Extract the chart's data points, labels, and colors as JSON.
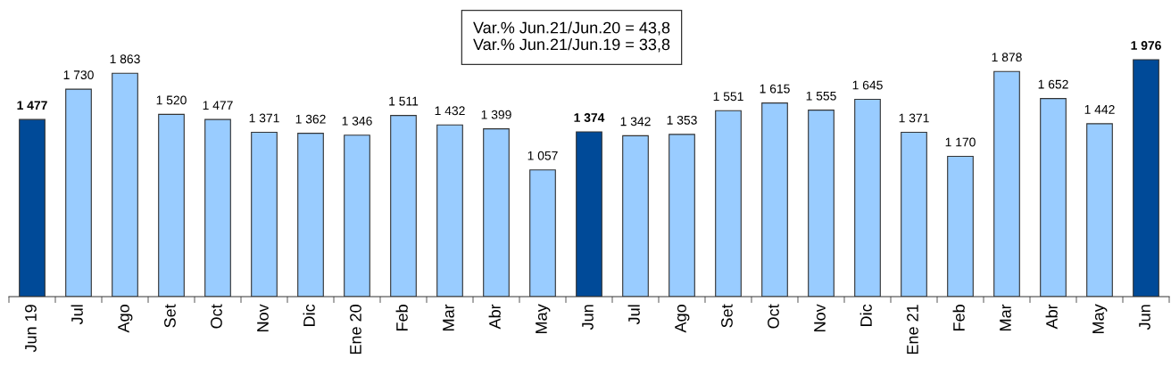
{
  "chart_data": {
    "type": "bar",
    "categories": [
      "Jun 19",
      "Jul",
      "Ago",
      "Set",
      "Oct",
      "Nov",
      "Dic",
      "Ene 20",
      "Feb",
      "Mar",
      "Abr",
      "May",
      "Jun",
      "Jul",
      "Ago",
      "Set",
      "Oct",
      "Nov",
      "Dic",
      "Ene 21",
      "Feb",
      "Mar",
      "Abr",
      "May",
      "Jun"
    ],
    "values": [
      1477,
      1730,
      1863,
      1520,
      1477,
      1371,
      1362,
      1346,
      1511,
      1432,
      1399,
      1057,
      1374,
      1342,
      1353,
      1551,
      1615,
      1555,
      1645,
      1371,
      1170,
      1878,
      1652,
      1442,
      1976
    ],
    "value_labels": [
      "1 477",
      "1 730",
      "1 863",
      "1 520",
      "1 477",
      "1 371",
      "1 362",
      "1 346",
      "1 511",
      "1 432",
      "1 399",
      "1 057",
      "1 374",
      "1 342",
      "1 353",
      "1 551",
      "1 615",
      "1 555",
      "1 645",
      "1 371",
      "1 170",
      "1 878",
      "1 652",
      "1 442",
      "1 976"
    ],
    "colors": [
      "#004a98",
      "#99ccff",
      "#99ccff",
      "#99ccff",
      "#99ccff",
      "#99ccff",
      "#99ccff",
      "#99ccff",
      "#99ccff",
      "#99ccff",
      "#99ccff",
      "#99ccff",
      "#004a98",
      "#99ccff",
      "#99ccff",
      "#99ccff",
      "#99ccff",
      "#99ccff",
      "#99ccff",
      "#99ccff",
      "#99ccff",
      "#99ccff",
      "#99ccff",
      "#99ccff",
      "#004a98"
    ],
    "annotations": [
      "Var.% Jun.21/Jun.20 = 43,8\nVar.% Jun.21/Jun.19 = 33,8"
    ],
    "tick_labels": "x",
    "grid": false,
    "legend": false
  }
}
